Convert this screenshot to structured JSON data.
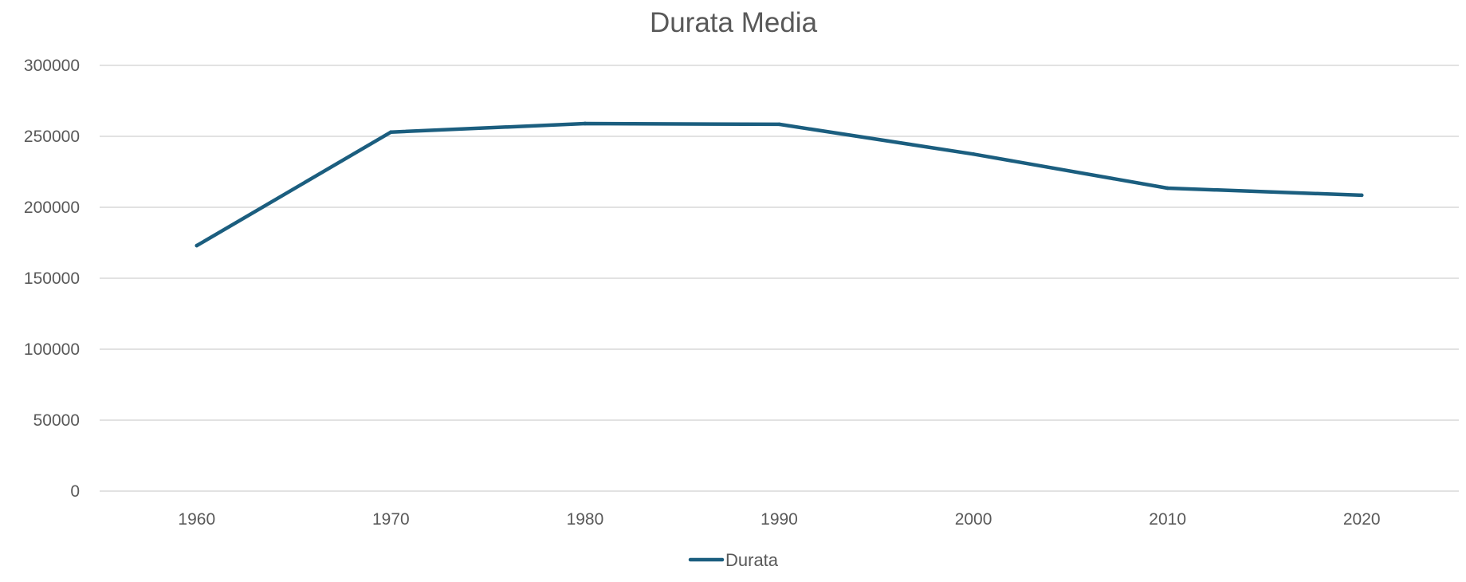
{
  "chart_data": {
    "type": "line",
    "title": "Durata Media",
    "xlabel": "",
    "ylabel": "",
    "categories": [
      "1960",
      "1970",
      "1980",
      "1990",
      "2000",
      "2010",
      "2020"
    ],
    "series": [
      {
        "name": "Durata",
        "values": [
          173000,
          253000,
          259000,
          258500,
          237500,
          213500,
          208500
        ],
        "color": "#1b5e7f"
      }
    ],
    "ylim": [
      0,
      300000
    ],
    "yticks": [
      "0",
      "50000",
      "100000",
      "150000",
      "200000",
      "250000",
      "300000"
    ],
    "grid": true,
    "legend_position": "bottom"
  }
}
